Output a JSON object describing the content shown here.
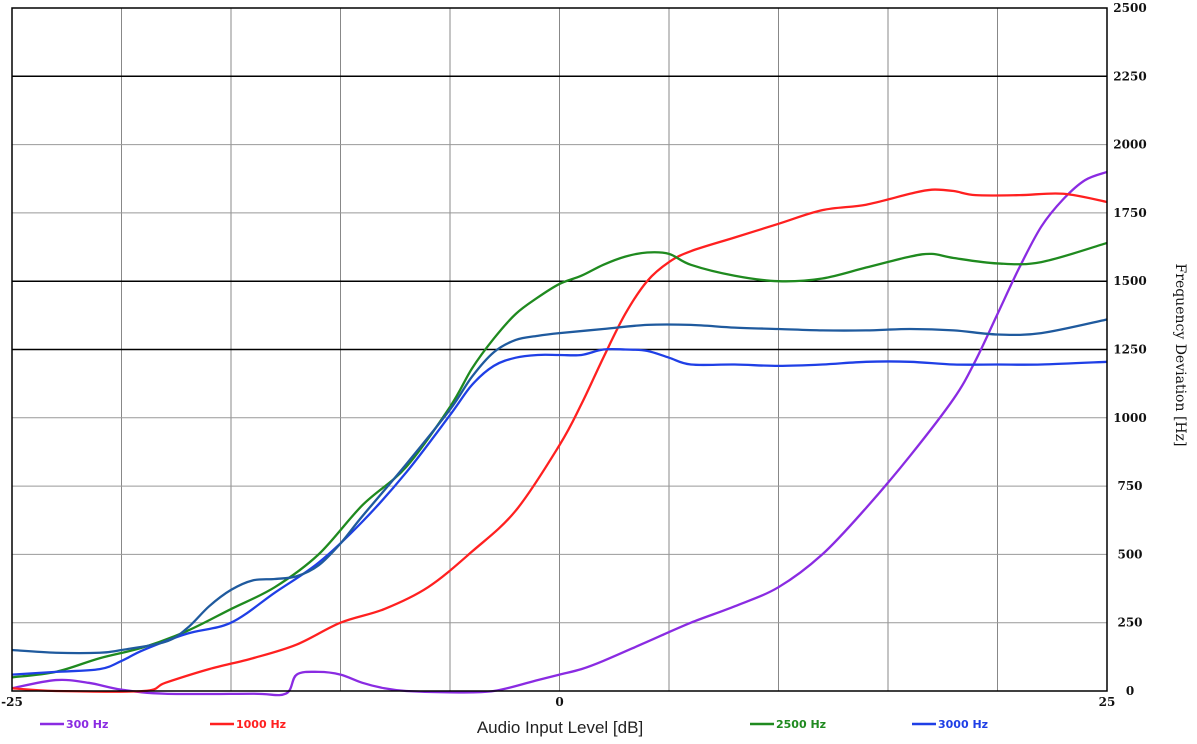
{
  "chart_data": {
    "type": "line",
    "xlabel": "Audio Input Level [dB]",
    "ylabel": "Frequency Deviation [Hz]",
    "xlim": [
      -25,
      25
    ],
    "ylim": [
      0,
      2500
    ],
    "x_tick_labels": [
      {
        "x": -25,
        "label": "-25"
      },
      {
        "x": 0,
        "label": "0"
      },
      {
        "x": 25,
        "label": "25"
      }
    ],
    "y_ticks": [
      0,
      250,
      500,
      750,
      1000,
      1250,
      1500,
      1750,
      2000,
      2250,
      2500
    ],
    "y_tick_labels": [
      "0",
      "250",
      "500",
      "750",
      "1000",
      "1250",
      "1500",
      "1750",
      "2000",
      "2250",
      "2500"
    ],
    "grid": true,
    "legend_position": "bottom",
    "series": [
      {
        "name": "300 Hz",
        "color": "#8a2be2",
        "points": [
          [
            -25,
            10
          ],
          [
            -23,
            40
          ],
          [
            -21.5,
            30
          ],
          [
            -20,
            5
          ],
          [
            -18,
            -10
          ],
          [
            -14,
            -10
          ],
          [
            -12.5,
            -10
          ],
          [
            -12,
            60
          ],
          [
            -11,
            70
          ],
          [
            -10,
            60
          ],
          [
            -9,
            30
          ],
          [
            -8,
            10
          ],
          [
            -7,
            0
          ],
          [
            -5,
            -5
          ],
          [
            -3,
            0
          ],
          [
            -1,
            40
          ],
          [
            0,
            60
          ],
          [
            1,
            80
          ],
          [
            2,
            110
          ],
          [
            4,
            180
          ],
          [
            6,
            250
          ],
          [
            8,
            310
          ],
          [
            10,
            380
          ],
          [
            12,
            500
          ],
          [
            14,
            670
          ],
          [
            16,
            860
          ],
          [
            18,
            1070
          ],
          [
            19,
            1210
          ],
          [
            20,
            1380
          ],
          [
            21,
            1550
          ],
          [
            22,
            1700
          ],
          [
            23,
            1800
          ],
          [
            24,
            1870
          ],
          [
            25,
            1900
          ]
        ]
      },
      {
        "name": "1000 Hz",
        "color": "#ff2020",
        "points": [
          [
            -25,
            10
          ],
          [
            -23,
            0
          ],
          [
            -19,
            0
          ],
          [
            -18,
            30
          ],
          [
            -16,
            80
          ],
          [
            -14,
            120
          ],
          [
            -12,
            170
          ],
          [
            -10,
            250
          ],
          [
            -8,
            300
          ],
          [
            -6,
            380
          ],
          [
            -4,
            510
          ],
          [
            -2,
            660
          ],
          [
            0,
            900
          ],
          [
            1,
            1050
          ],
          [
            2,
            1220
          ],
          [
            3,
            1380
          ],
          [
            4,
            1500
          ],
          [
            5,
            1570
          ],
          [
            6,
            1610
          ],
          [
            8,
            1660
          ],
          [
            10,
            1710
          ],
          [
            12,
            1760
          ],
          [
            14,
            1780
          ],
          [
            16,
            1820
          ],
          [
            17,
            1835
          ],
          [
            18,
            1830
          ],
          [
            19,
            1815
          ],
          [
            21,
            1815
          ],
          [
            23,
            1820
          ],
          [
            25,
            1790
          ]
        ]
      },
      {
        "name": "2500 Hz",
        "color": "#1f8a1f",
        "points": [
          [
            -25,
            50
          ],
          [
            -23,
            70
          ],
          [
            -21,
            120
          ],
          [
            -19,
            160
          ],
          [
            -17,
            220
          ],
          [
            -15,
            300
          ],
          [
            -13,
            380
          ],
          [
            -11,
            500
          ],
          [
            -9,
            680
          ],
          [
            -7,
            820
          ],
          [
            -5,
            1040
          ],
          [
            -4,
            1180
          ],
          [
            -3,
            1290
          ],
          [
            -2,
            1380
          ],
          [
            -1,
            1440
          ],
          [
            0,
            1490
          ],
          [
            1,
            1520
          ],
          [
            2,
            1560
          ],
          [
            3,
            1590
          ],
          [
            4,
            1605
          ],
          [
            5,
            1600
          ],
          [
            6,
            1560
          ],
          [
            8,
            1520
          ],
          [
            10,
            1500
          ],
          [
            12,
            1510
          ],
          [
            14,
            1550
          ],
          [
            16,
            1590
          ],
          [
            17,
            1600
          ],
          [
            18,
            1585
          ],
          [
            20,
            1565
          ],
          [
            22,
            1570
          ],
          [
            25,
            1640
          ]
        ]
      },
      {
        "name": "3000 Hz",
        "color": "#1f3fe6",
        "points": [
          [
            -25,
            60
          ],
          [
            -23,
            70
          ],
          [
            -21,
            80
          ],
          [
            -20,
            110
          ],
          [
            -19,
            150
          ],
          [
            -17,
            210
          ],
          [
            -15,
            250
          ],
          [
            -13,
            360
          ],
          [
            -11,
            470
          ],
          [
            -9,
            620
          ],
          [
            -7,
            800
          ],
          [
            -5,
            1010
          ],
          [
            -4,
            1120
          ],
          [
            -3,
            1190
          ],
          [
            -2,
            1220
          ],
          [
            -1,
            1230
          ],
          [
            0,
            1230
          ],
          [
            1,
            1230
          ],
          [
            2,
            1250
          ],
          [
            3,
            1250
          ],
          [
            4,
            1245
          ],
          [
            5,
            1220
          ],
          [
            6,
            1195
          ],
          [
            8,
            1195
          ],
          [
            10,
            1190
          ],
          [
            12,
            1195
          ],
          [
            14,
            1205
          ],
          [
            16,
            1205
          ],
          [
            18,
            1195
          ],
          [
            20,
            1195
          ],
          [
            22,
            1195
          ],
          [
            25,
            1205
          ]
        ]
      },
      {
        "color": "#1f5a9e",
        "points": [
          [
            -25,
            150
          ],
          [
            -23,
            140
          ],
          [
            -21,
            140
          ],
          [
            -20,
            150
          ],
          [
            -18,
            180
          ],
          [
            -17,
            230
          ],
          [
            -16,
            310
          ],
          [
            -15,
            370
          ],
          [
            -14,
            405
          ],
          [
            -13,
            410
          ],
          [
            -12,
            420
          ],
          [
            -11,
            460
          ],
          [
            -10,
            540
          ],
          [
            -9,
            640
          ],
          [
            -7,
            830
          ],
          [
            -5,
            1030
          ],
          [
            -4,
            1150
          ],
          [
            -3,
            1240
          ],
          [
            -2,
            1285
          ],
          [
            -1,
            1300
          ],
          [
            0,
            1310
          ],
          [
            2,
            1325
          ],
          [
            4,
            1340
          ],
          [
            6,
            1340
          ],
          [
            8,
            1330
          ],
          [
            10,
            1325
          ],
          [
            12,
            1320
          ],
          [
            14,
            1320
          ],
          [
            16,
            1325
          ],
          [
            18,
            1320
          ],
          [
            20,
            1305
          ],
          [
            22,
            1310
          ],
          [
            25,
            1360
          ]
        ]
      }
    ]
  }
}
